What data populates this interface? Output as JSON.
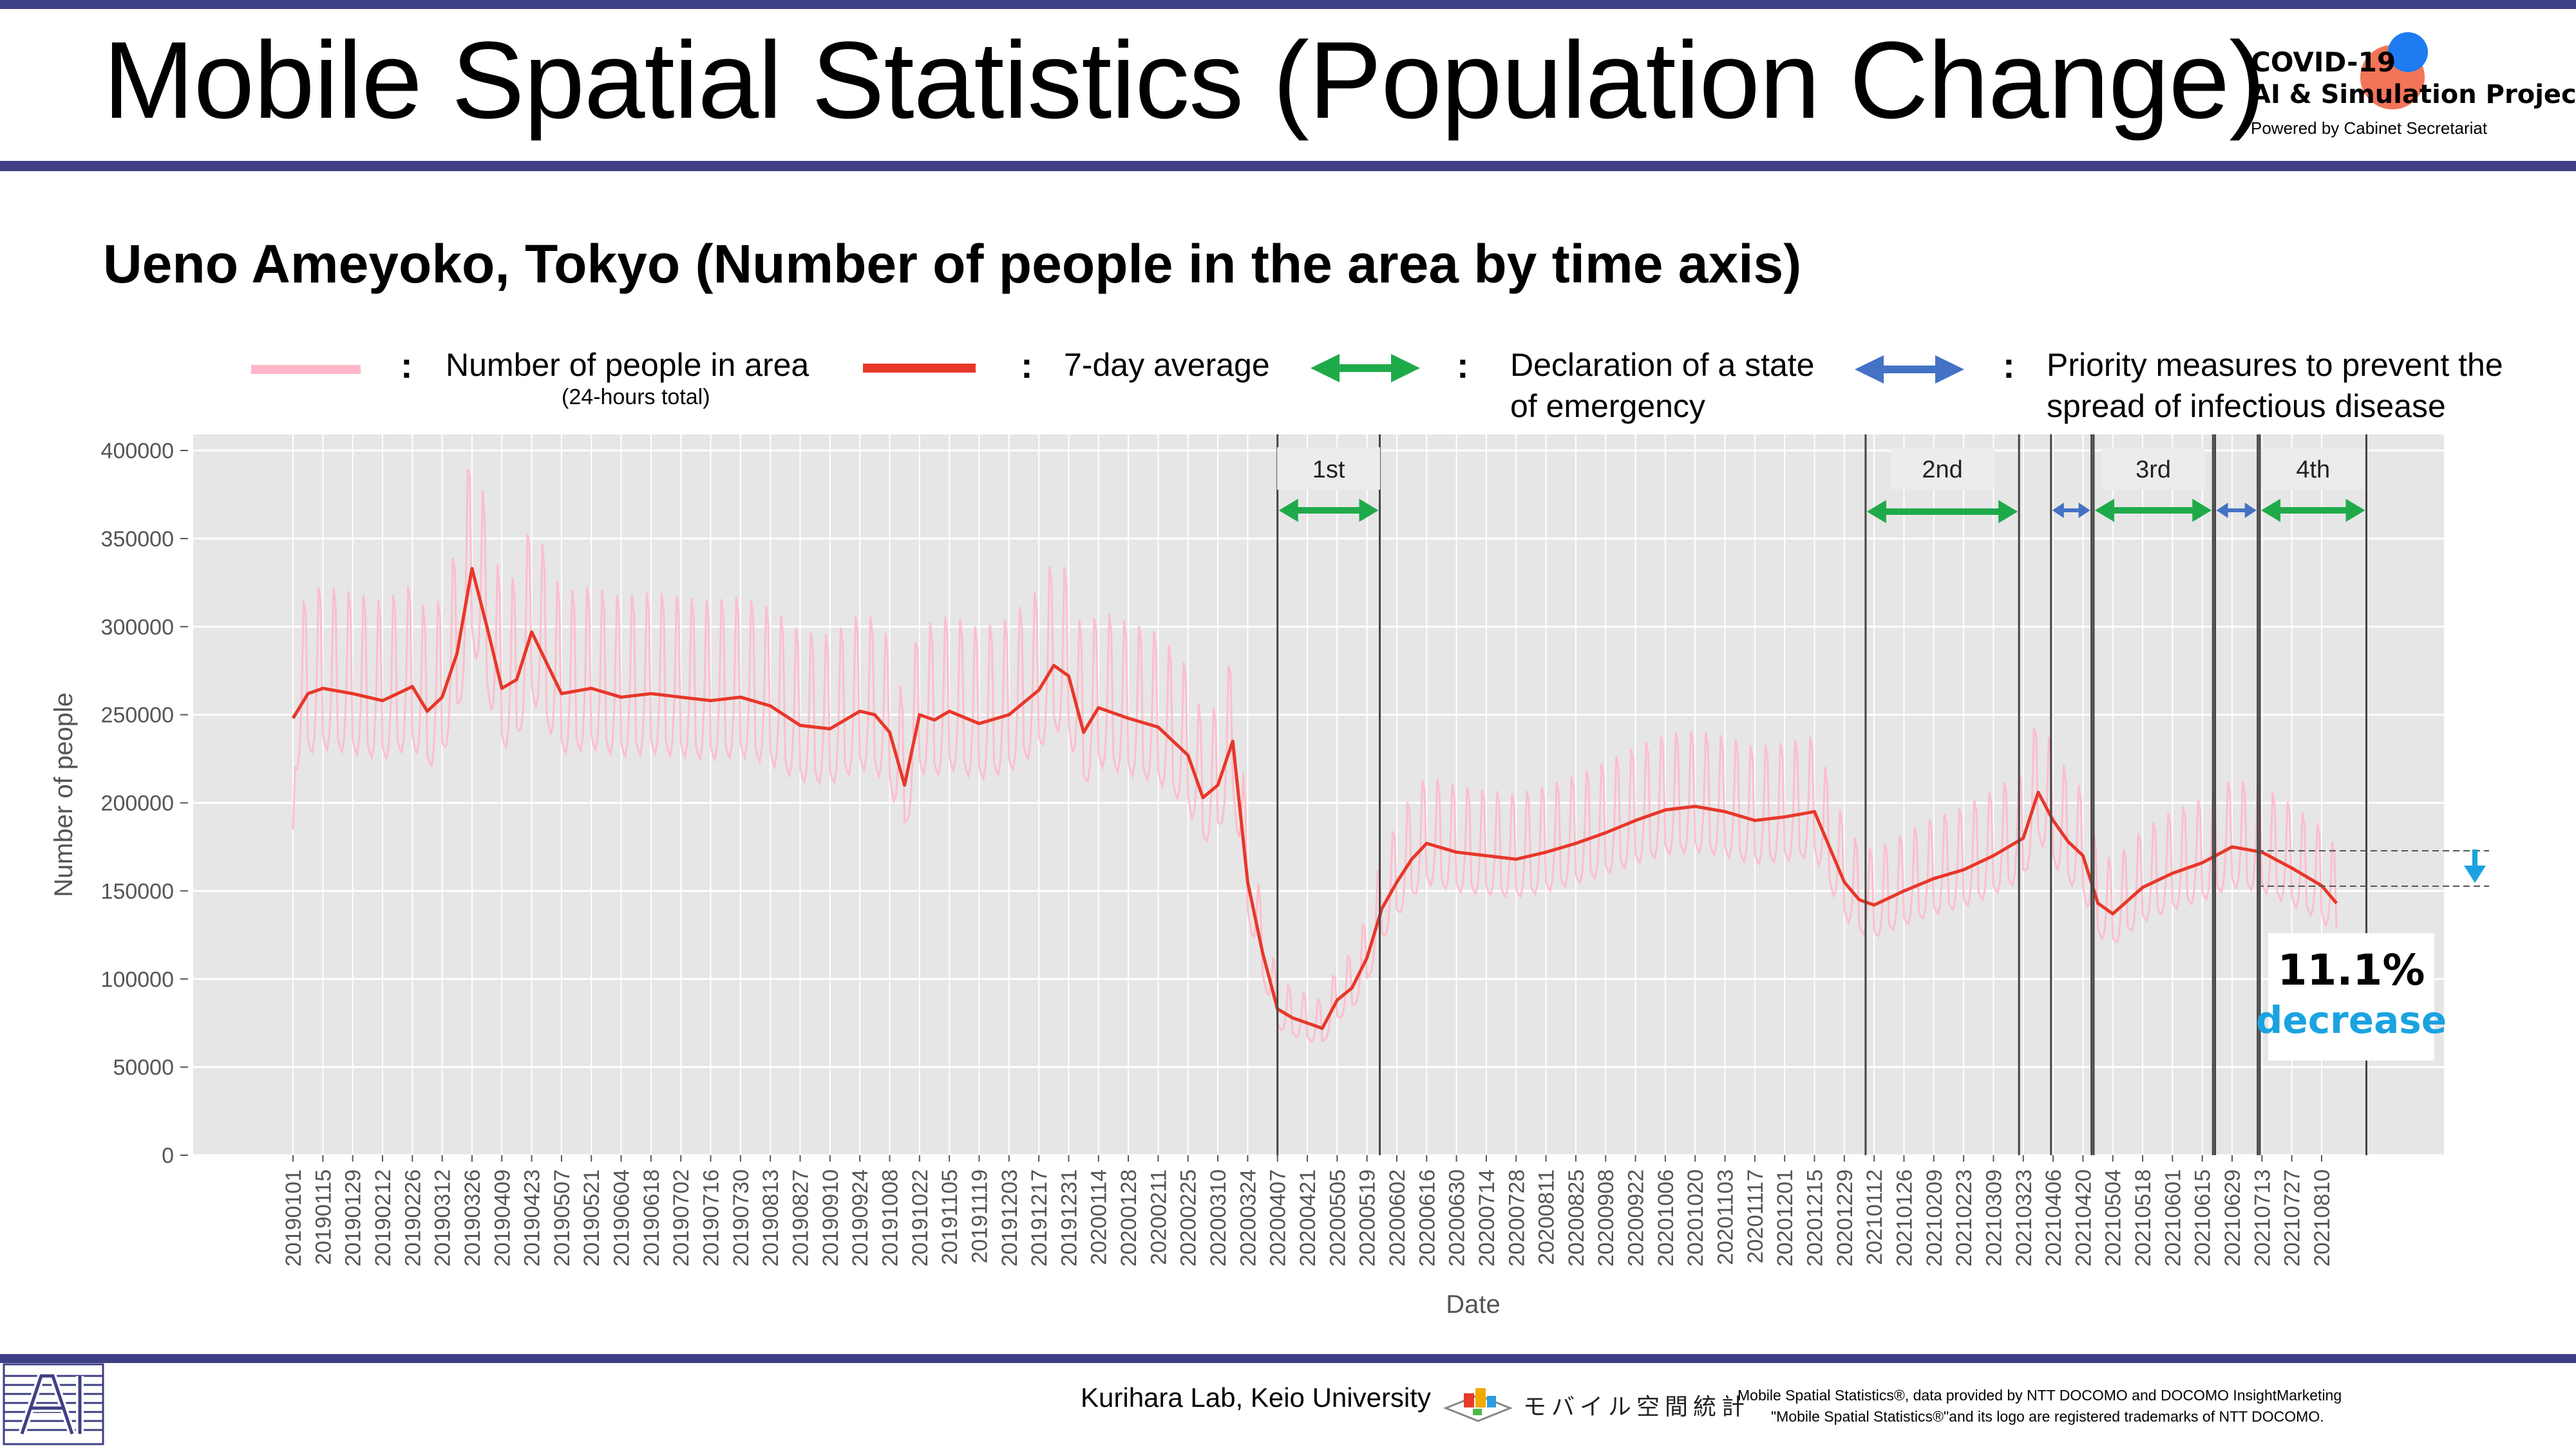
{
  "header": {
    "title": "Mobile Spatial Statistics (Population Change)",
    "logo_line1": "COVID-19",
    "logo_line2": "AI & Simulation Project",
    "logo_line3": "Powered by Cabinet Secretariat"
  },
  "subtitle": "Ueno Ameyoko, Tokyo (Number of people in the area by time axis)",
  "legend": {
    "colon": ":",
    "daily_label": "Number of people in area",
    "daily_sub": "(24-hours total)",
    "avg_label": "7-day average",
    "emergency_line1": "Declaration of a state",
    "emergency_line2": "of emergency",
    "priority_line1": "Priority measures to prevent the",
    "priority_line2": "spread of infectious disease"
  },
  "colors": {
    "header_bar": "#3f3f85",
    "daily_line": "#ffb6c8",
    "average_line": "#e8372a",
    "emergency_arrow": "#1faa4a",
    "priority_arrow": "#4472c4",
    "plot_bg": "#e6e6e6",
    "decrease_text": "#1aa3e0"
  },
  "chart_data": {
    "type": "line",
    "xlabel": "Date",
    "ylabel": "Number of people",
    "ylim": [
      0,
      400000
    ],
    "yticks": [
      0,
      50000,
      100000,
      150000,
      200000,
      250000,
      300000,
      350000,
      400000
    ],
    "grid": true,
    "x_ticks": [
      "20190101",
      "20190115",
      "20190129",
      "20190212",
      "20190226",
      "20190312",
      "20190326",
      "20190409",
      "20190423",
      "20190507",
      "20190521",
      "20190604",
      "20190618",
      "20190702",
      "20190716",
      "20190730",
      "20190813",
      "20190827",
      "20190910",
      "20190924",
      "20191008",
      "20191022",
      "20191105",
      "20191119",
      "20191203",
      "20191217",
      "20191231",
      "20200114",
      "20200128",
      "20200211",
      "20200225",
      "20200310",
      "20200324",
      "20200407",
      "20200421",
      "20200505",
      "20200519",
      "20200602",
      "20200616",
      "20200630",
      "20200714",
      "20200728",
      "20200811",
      "20200825",
      "20200908",
      "20200922",
      "20201006",
      "20201020",
      "20201103",
      "20201117",
      "20201201",
      "20201215",
      "20201229",
      "20210112",
      "20210126",
      "20210209",
      "20210223",
      "20210309",
      "20210323",
      "20210406",
      "20210420",
      "20210504",
      "20210518",
      "20210601",
      "20210615",
      "20210629",
      "20210713",
      "20210727",
      "20210810"
    ],
    "series": [
      {
        "name": "7-day average",
        "color": "#e8372a",
        "x": [
          "20190101",
          "20190108",
          "20190115",
          "20190129",
          "20190212",
          "20190226",
          "20190305",
          "20190312",
          "20190319",
          "20190326",
          "20190402",
          "20190409",
          "20190416",
          "20190423",
          "20190507",
          "20190521",
          "20190604",
          "20190618",
          "20190702",
          "20190716",
          "20190730",
          "20190813",
          "20190827",
          "20190910",
          "20190924",
          "20191001",
          "20191008",
          "20191015",
          "20191022",
          "20191029",
          "20191105",
          "20191119",
          "20191203",
          "20191217",
          "20191224",
          "20191231",
          "20200107",
          "20200114",
          "20200128",
          "20200211",
          "20200225",
          "20200303",
          "20200310",
          "20200317",
          "20200324",
          "20200331",
          "20200407",
          "20200414",
          "20200421",
          "20200428",
          "20200505",
          "20200512",
          "20200519",
          "20200526",
          "20200602",
          "20200609",
          "20200616",
          "20200630",
          "20200714",
          "20200728",
          "20200811",
          "20200825",
          "20200908",
          "20200922",
          "20201006",
          "20201020",
          "20201103",
          "20201117",
          "20201201",
          "20201215",
          "20201229",
          "20210105",
          "20210112",
          "20210126",
          "20210209",
          "20210223",
          "20210309",
          "20210323",
          "20210330",
          "20210406",
          "20210413",
          "20210420",
          "20210427",
          "20210504",
          "20210518",
          "20210601",
          "20210615",
          "20210629",
          "20210713",
          "20210727",
          "20210810",
          "20210817"
        ],
        "y": [
          248000,
          262000,
          265000,
          262000,
          258000,
          266000,
          252000,
          260000,
          285000,
          333000,
          300000,
          265000,
          270000,
          297000,
          262000,
          265000,
          260000,
          262000,
          260000,
          258000,
          260000,
          255000,
          244000,
          242000,
          252000,
          250000,
          240000,
          210000,
          250000,
          247000,
          252000,
          245000,
          250000,
          264000,
          278000,
          272000,
          240000,
          254000,
          248000,
          243000,
          227000,
          203000,
          210000,
          235000,
          155000,
          115000,
          83000,
          78000,
          75000,
          72000,
          88000,
          95000,
          112000,
          140000,
          155000,
          168000,
          177000,
          172000,
          170000,
          168000,
          172000,
          177000,
          183000,
          190000,
          196000,
          198000,
          195000,
          190000,
          192000,
          195000,
          155000,
          145000,
          142000,
          150000,
          157000,
          162000,
          170000,
          180000,
          206000,
          190000,
          178000,
          170000,
          143000,
          137000,
          152000,
          160000,
          166000,
          175000,
          172000,
          163000,
          153000,
          143000
        ]
      },
      {
        "name": "Number of people in area",
        "color": "#ffb6c8"
      }
    ],
    "periods": [
      {
        "label": "1st",
        "type": "emergency",
        "start": "20200407",
        "end": "20200525"
      },
      {
        "label": "2nd",
        "type": "emergency",
        "start": "20210108",
        "end": "20210321"
      },
      {
        "label": "",
        "type": "priority",
        "start": "20210405",
        "end": "20210424"
      },
      {
        "label": "3rd",
        "type": "emergency",
        "start": "20210425",
        "end": "20210620"
      },
      {
        "label": "",
        "type": "priority",
        "start": "20210621",
        "end": "20210711"
      },
      {
        "label": "4th",
        "type": "emergency",
        "start": "20210712",
        "end": "20210831"
      }
    ],
    "annotation": {
      "value": "11.1%",
      "label": "decrease"
    }
  },
  "footer": {
    "lab": "Kurihara Lab, Keio University",
    "mobile_logo": "モバイル空間統計",
    "notice1": "Mobile Spatial Statistics®, data provided by NTT DOCOMO and DOCOMO InsightMarketing",
    "notice2": "\"Mobile Spatial Statistics®\"and its logo are registered trademarks of NTT DOCOMO."
  }
}
